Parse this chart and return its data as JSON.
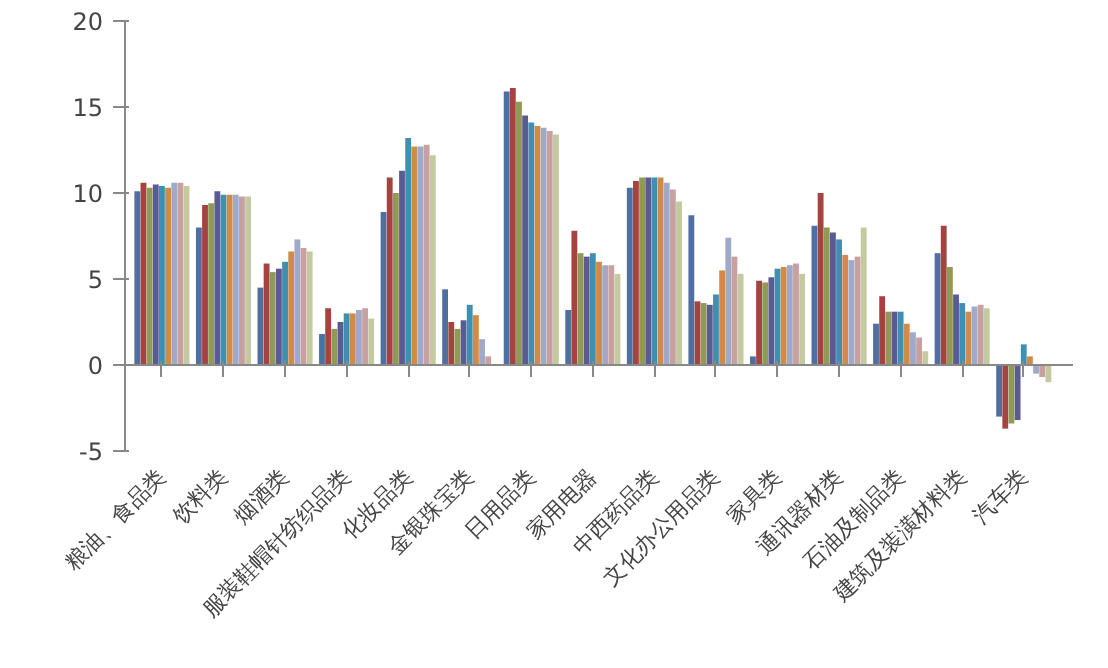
{
  "chart_data": {
    "type": "bar",
    "categories": [
      "粮油、食品类",
      "饮料类",
      "烟酒类",
      "服装鞋帽针纺织品类",
      "化妆品类",
      "金银珠宝类",
      "日用品类",
      "家用电器",
      "中西药品类",
      "文化办公用品类",
      "家具类",
      "通讯器材类",
      "石油及制品类",
      "建筑及装潢材料类",
      "汽车类"
    ],
    "series": [
      {
        "color": "#4f6fa0",
        "values": [
          10.1,
          8.0,
          4.5,
          1.8,
          8.9,
          4.4,
          15.9,
          3.2,
          10.3,
          8.7,
          0.5,
          8.1,
          2.4,
          6.5,
          -3.0
        ]
      },
      {
        "color": "#a4433f",
        "values": [
          10.6,
          9.3,
          5.9,
          3.3,
          10.9,
          2.5,
          16.1,
          7.8,
          10.7,
          3.7,
          4.9,
          10.0,
          4.0,
          8.1,
          -3.7
        ]
      },
      {
        "color": "#8e9a56",
        "values": [
          10.3,
          9.4,
          5.4,
          2.1,
          10.0,
          2.1,
          15.3,
          6.5,
          10.9,
          3.6,
          4.8,
          8.0,
          3.1,
          5.7,
          -3.4
        ]
      },
      {
        "color": "#5b5b94",
        "values": [
          10.5,
          10.1,
          5.6,
          2.5,
          11.3,
          2.6,
          14.5,
          6.3,
          10.9,
          3.5,
          5.1,
          7.7,
          3.1,
          4.1,
          -3.2
        ]
      },
      {
        "color": "#3f8fb0",
        "values": [
          10.4,
          9.9,
          6.0,
          3.0,
          13.2,
          3.5,
          14.1,
          6.5,
          10.9,
          4.1,
          5.6,
          7.3,
          3.1,
          3.6,
          1.2
        ]
      },
      {
        "color": "#d18b48",
        "values": [
          10.3,
          9.9,
          6.6,
          3.0,
          12.7,
          2.9,
          13.9,
          6.0,
          10.9,
          5.5,
          5.7,
          6.4,
          2.4,
          3.1,
          0.5
        ]
      },
      {
        "color": "#9fa9c9",
        "values": [
          10.6,
          9.9,
          7.3,
          3.2,
          12.7,
          1.5,
          13.8,
          5.8,
          10.6,
          7.4,
          5.8,
          6.1,
          1.9,
          3.4,
          -0.5
        ]
      },
      {
        "color": "#c9a0a0",
        "values": [
          10.6,
          9.8,
          6.8,
          3.3,
          12.8,
          0.5,
          13.6,
          5.8,
          10.2,
          6.3,
          5.9,
          6.3,
          1.6,
          3.5,
          -0.7
        ]
      },
      {
        "color": "#c5c9a0",
        "values": [
          10.4,
          9.8,
          6.6,
          2.7,
          12.2,
          null,
          13.4,
          5.3,
          9.5,
          5.3,
          5.3,
          8.0,
          0.8,
          3.3,
          -1.0
        ]
      }
    ],
    "ylim": [
      -5,
      20
    ],
    "yticks": [
      {
        "value": -5,
        "label": "-5"
      },
      0,
      5,
      10,
      15,
      20
    ]
  }
}
